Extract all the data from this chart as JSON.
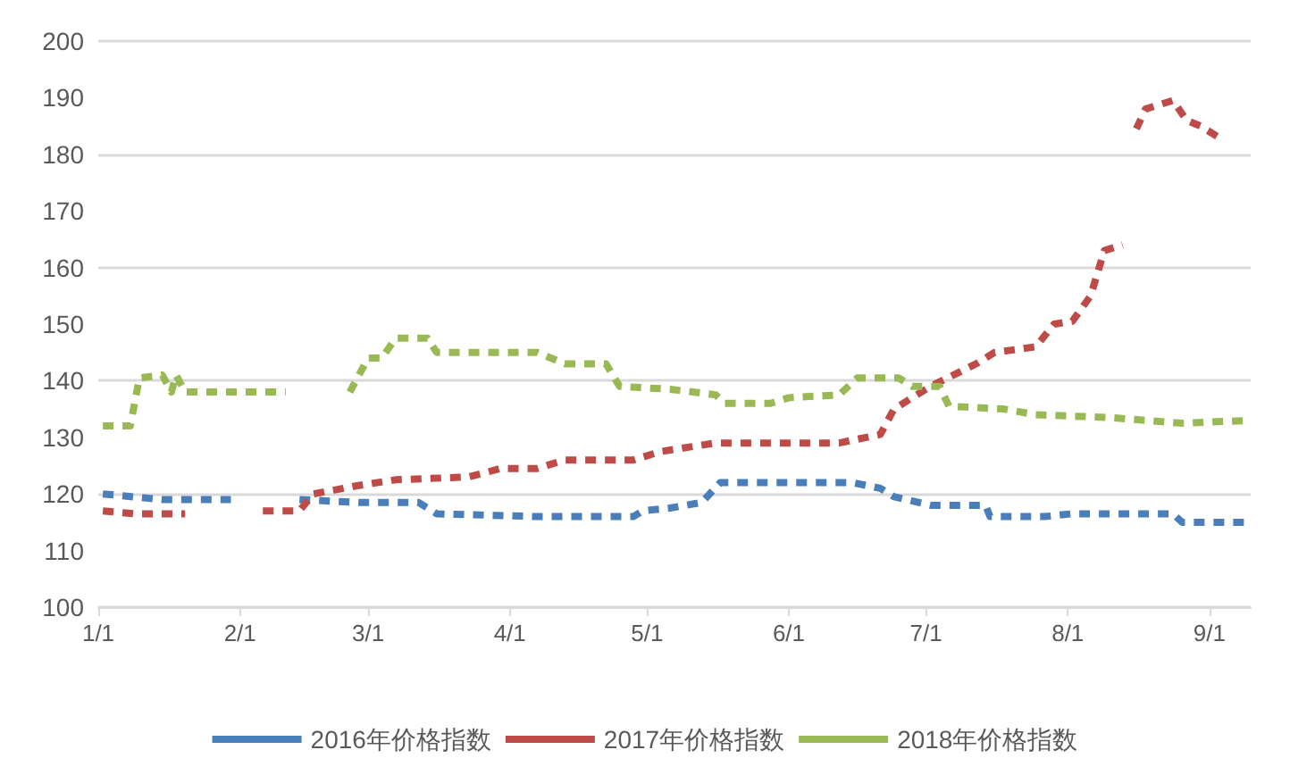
{
  "chart_data": {
    "type": "line",
    "line_style": "dashed",
    "marker": "none",
    "grid": "y",
    "legend": "bottom",
    "xlim": [
      "--01-01",
      "--09-10"
    ],
    "xticks": [
      {
        "value": "--01-01",
        "label": "1/1"
      },
      {
        "value": "--02-01",
        "label": "2/1"
      },
      {
        "value": "--03-01",
        "label": "3/1"
      },
      {
        "value": "--04-01",
        "label": "4/1"
      },
      {
        "value": "--05-01",
        "label": "5/1"
      },
      {
        "value": "--06-01",
        "label": "6/1"
      },
      {
        "value": "--07-01",
        "label": "7/1"
      },
      {
        "value": "--08-01",
        "label": "8/1"
      },
      {
        "value": "--09-01",
        "label": "9/1"
      }
    ],
    "ylim": [
      100,
      200
    ],
    "yticks": [
      100,
      110,
      120,
      130,
      140,
      150,
      160,
      170,
      180,
      190,
      200
    ],
    "series": [
      {
        "name": "2016年价格指数",
        "color": "#4a7ebb",
        "x": [
          "--01-02",
          "--01-15",
          "--01-30",
          "--02-05",
          "--02-14",
          "--02-27",
          "--03-12",
          "--03-16",
          "--04-07",
          "--04-28",
          "--04-30",
          "--05-06",
          "--05-13",
          "--05-17",
          "--06-15",
          "--06-21",
          "--06-24",
          "--07-02",
          "--07-14",
          "--07-15",
          "--07-27",
          "--08-02",
          "--08-24",
          "--08-26",
          "--09-10"
        ],
        "values": [
          120,
          119,
          119,
          null,
          119,
          118.5,
          118.5,
          116.5,
          116,
          116,
          117,
          117.5,
          118.5,
          122,
          122,
          121,
          119.5,
          118,
          118,
          116,
          116,
          116.5,
          116.5,
          115,
          115
        ]
      },
      {
        "name": "2017年价格指数",
        "color": "#be4b48",
        "x": [
          "--01-02",
          "--01-09",
          "--01-20",
          "--01-25",
          "--02-06",
          "--02-14",
          "--02-17",
          "--02-27",
          "--03-07",
          "--03-23",
          "--03-30",
          "--04-07",
          "--04-13",
          "--04-28",
          "--05-04",
          "--05-16",
          "--06-12",
          "--06-21",
          "--06-24",
          "--07-02",
          "--07-12",
          "--07-16",
          "--07-25",
          "--07-29",
          "--08-02",
          "--08-06",
          "--08-09",
          "--08-13",
          "--08-15",
          "--08-16",
          "--08-18",
          "--08-24",
          "--08-27",
          "--08-30",
          "--09-03"
        ],
        "values": [
          117,
          116.5,
          116.5,
          null,
          117,
          117,
          120,
          121.5,
          122.5,
          123,
          124.5,
          124.5,
          126,
          126,
          127.5,
          129,
          129,
          130.5,
          135,
          139,
          143,
          145,
          146,
          150,
          150.5,
          155,
          163,
          164,
          null,
          184.5,
          188,
          189.5,
          186,
          185,
          183
        ]
      },
      {
        "name": "2018年价格指数",
        "color": "#98b954",
        "x": [
          "--01-02",
          "--01-08",
          "--01-10",
          "--01-15",
          "--01-17",
          "--01-18",
          "--01-20",
          "--02-11",
          "--02-15",
          "--02-25",
          "--03-01",
          "--03-04",
          "--03-07",
          "--03-14",
          "--03-16",
          "--04-07",
          "--04-13",
          "--04-22",
          "--04-25",
          "--05-06",
          "--05-16",
          "--05-18",
          "--05-28",
          "--06-01",
          "--06-12",
          "--06-16",
          "--06-25",
          "--06-28",
          "--07-04",
          "--07-06",
          "--07-18",
          "--07-25",
          "--08-10",
          "--08-26",
          "--09-10"
        ],
        "values": [
          132,
          132,
          140.5,
          141,
          138,
          141,
          138,
          138,
          null,
          138,
          144,
          144,
          147.5,
          147.5,
          145,
          145,
          143,
          143,
          139,
          138.5,
          137.5,
          136,
          136,
          137,
          137.5,
          140.5,
          140.5,
          139,
          139,
          135.5,
          135,
          134,
          133.5,
          132.5,
          133
        ]
      }
    ]
  }
}
